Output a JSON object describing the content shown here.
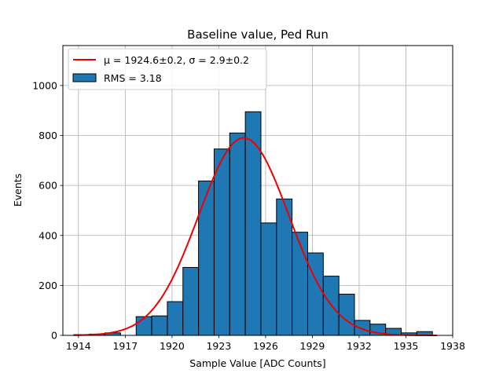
{
  "chart_data": {
    "type": "bar",
    "title": "Baseline value, Ped Run",
    "xlabel": "Sample Value [ADC Counts]",
    "ylabel": "Events",
    "xlim": [
      1913,
      1938
    ],
    "ylim": [
      0,
      1160
    ],
    "x_ticks": [
      1914,
      1917,
      1920,
      1923,
      1926,
      1929,
      1932,
      1935,
      1938
    ],
    "y_ticks": [
      0,
      200,
      400,
      600,
      800,
      1000
    ],
    "grid": true,
    "legend_position": "top-left",
    "bar_color": "#1f77b4",
    "fit_color": "#ee0000",
    "bins": [
      {
        "left": 1913.7,
        "right": 1914.7,
        "value": 3
      },
      {
        "left": 1914.7,
        "right": 1915.7,
        "value": 5
      },
      {
        "left": 1915.7,
        "right": 1916.7,
        "value": 10
      },
      {
        "left": 1916.7,
        "right": 1917.7,
        "value": 0
      },
      {
        "left": 1917.7,
        "right": 1918.7,
        "value": 75
      },
      {
        "left": 1918.7,
        "right": 1919.7,
        "value": 78
      },
      {
        "left": 1919.7,
        "right": 1920.7,
        "value": 135
      },
      {
        "left": 1920.7,
        "right": 1921.7,
        "value": 272
      },
      {
        "left": 1921.7,
        "right": 1922.7,
        "value": 618
      },
      {
        "left": 1922.7,
        "right": 1923.7,
        "value": 746
      },
      {
        "left": 1923.7,
        "right": 1924.7,
        "value": 810
      },
      {
        "left": 1924.7,
        "right": 1925.7,
        "value": 895
      },
      {
        "left": 1925.7,
        "right": 1926.7,
        "value": 450
      },
      {
        "left": 1926.7,
        "right": 1927.7,
        "value": 546
      },
      {
        "left": 1927.7,
        "right": 1928.7,
        "value": 413
      },
      {
        "left": 1928.7,
        "right": 1929.7,
        "value": 330
      },
      {
        "left": 1929.7,
        "right": 1930.7,
        "value": 237
      },
      {
        "left": 1930.7,
        "right": 1931.7,
        "value": 165
      },
      {
        "left": 1931.7,
        "right": 1932.7,
        "value": 60
      },
      {
        "left": 1932.7,
        "right": 1933.7,
        "value": 45
      },
      {
        "left": 1933.7,
        "right": 1934.7,
        "value": 28
      },
      {
        "left": 1934.7,
        "right": 1935.7,
        "value": 10
      },
      {
        "left": 1935.7,
        "right": 1936.7,
        "value": 15
      }
    ],
    "fit": {
      "type": "gaussian",
      "mu": 1924.6,
      "sigma": 2.9,
      "amplitude": 790,
      "x_range": [
        1913.7,
        1937
      ]
    },
    "legend": [
      {
        "label": "μ = 1924.6±0.2, σ = 2.9±0.2",
        "kind": "line"
      },
      {
        "label": "RMS = 3.18",
        "kind": "patch"
      }
    ]
  }
}
